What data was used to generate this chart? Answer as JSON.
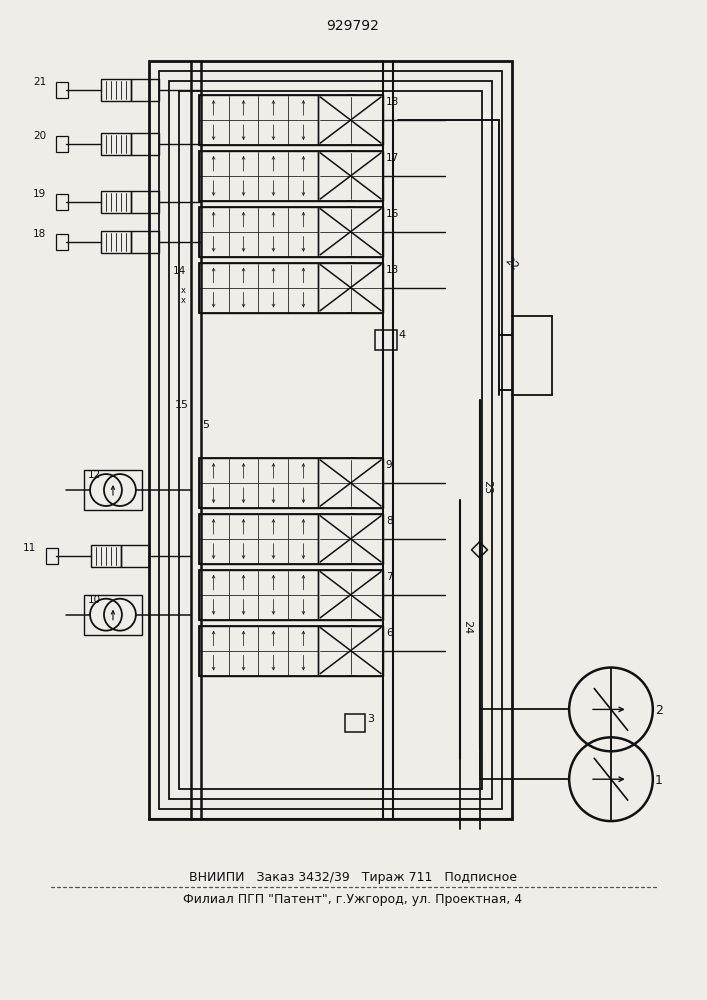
{
  "title": "929792",
  "footer_line1": "ВНИИПИ   Заказ 3432/39   Тираж 711   Подписное",
  "footer_line2": "Филиал ПГП \"Патент\", г.Ужгород, ул. Проектная, 4",
  "bg_color": "#f0ede8",
  "line_color": "#111111",
  "font_color": "#111111"
}
